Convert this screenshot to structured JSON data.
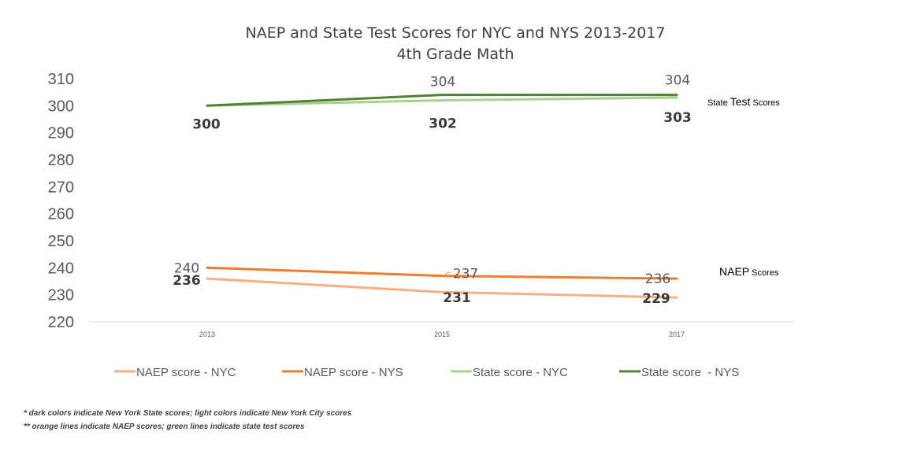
{
  "chart_data": {
    "type": "line",
    "title": "NAEP and State Test Scores for NYC and NYS 2013-2017",
    "subtitle": "4th Grade Math",
    "categories": [
      "2013",
      "2015",
      "2017"
    ],
    "ylim": [
      220,
      310
    ],
    "yticks": [
      220,
      230,
      240,
      250,
      260,
      270,
      280,
      290,
      300,
      310
    ],
    "grid": false,
    "legend_position": "bottom",
    "series": [
      {
        "name": "NAEP score - NYC",
        "values": [
          236,
          231,
          229
        ],
        "color": "#F4B183",
        "labels": [
          "236",
          "231",
          "229"
        ],
        "label_bold": true
      },
      {
        "name": "NAEP score - NYS",
        "values": [
          240,
          237,
          236
        ],
        "color": "#ED7D31",
        "labels": [
          "240",
          "237",
          "236"
        ],
        "label_bold": false
      },
      {
        "name": "State score - NYC",
        "values": [
          300,
          302,
          303
        ],
        "color": "#A9D18E",
        "labels": [
          "300",
          "302",
          "303"
        ],
        "label_bold": true
      },
      {
        "name": "State score  - NYS",
        "values": [
          300,
          304,
          304
        ],
        "color": "#548235",
        "labels": [
          "",
          "304",
          "304"
        ],
        "label_bold": false
      }
    ],
    "annotations": {
      "state_small": "State ",
      "state_big": "Test",
      "state_small2": " Scores",
      "naep_big": "NAEP",
      "naep_small": " Scores"
    }
  },
  "footnotes": {
    "line1": "* dark colors indicate New York State scores; light colors indicate New York City scores",
    "line2": "** orange lines indicate NAEP scores; green lines indicate state test scores"
  }
}
